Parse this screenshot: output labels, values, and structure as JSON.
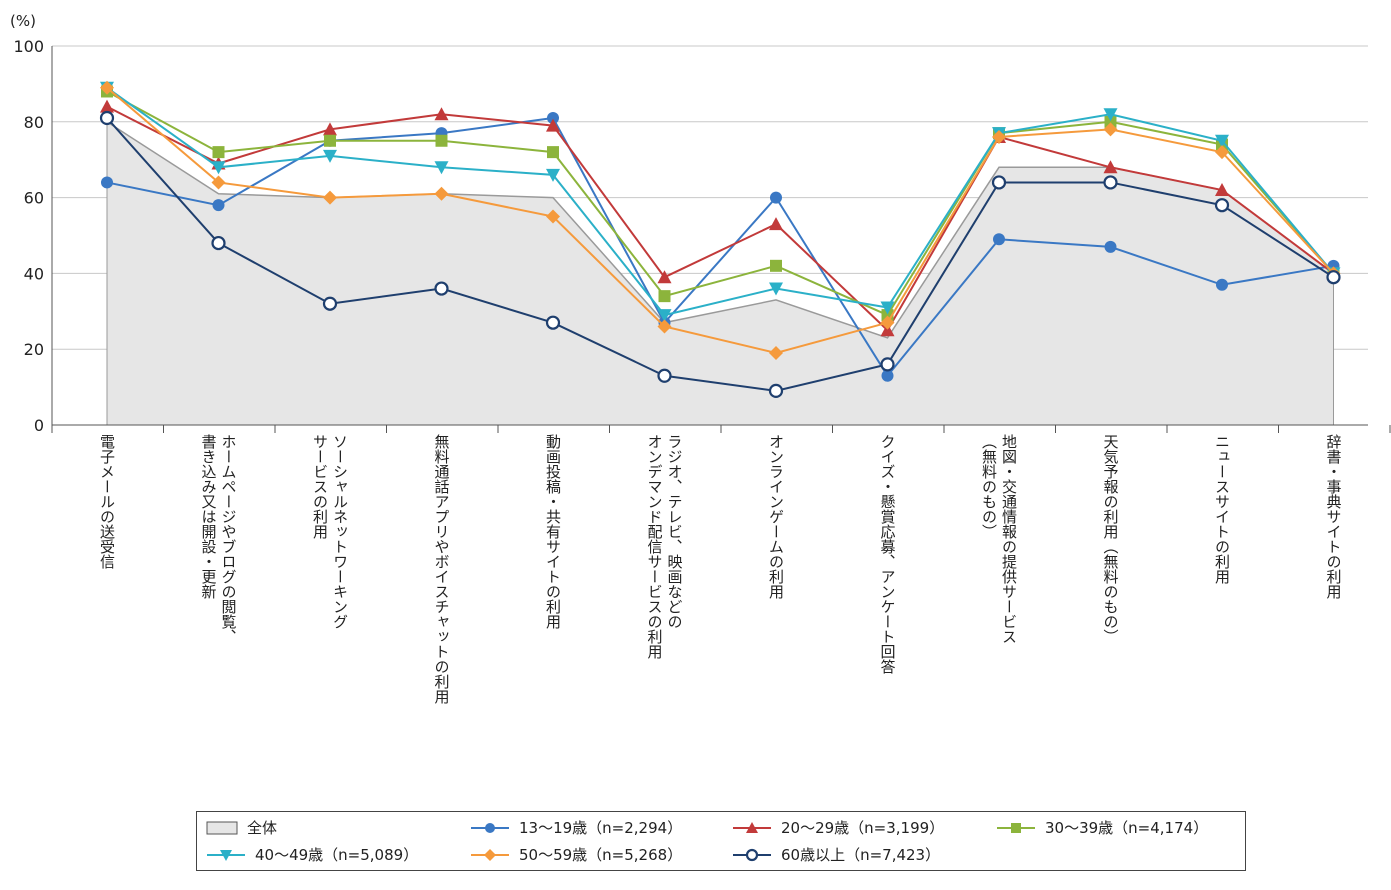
{
  "chart_data": {
    "type": "line",
    "ylabel": "(%)",
    "ylim": [
      0,
      100
    ],
    "yticks": [
      0,
      20,
      40,
      60,
      80,
      100
    ],
    "grid": true,
    "legend_position": "bottom",
    "categories": [
      "電子メールの送受信",
      "ホームページやブログの閲覧、\n書き込み又は開設・更新",
      "ソーシャルネットワーキング\nサービスの利用",
      "無料通話アプリやボイスチャットの利用",
      "動画投稿・共有サイトの利用",
      "ラジオ、テレビ、映画などの\nオンデマンド配信サービスの利用",
      "オンラインゲームの利用",
      "クイズ・懸賞応募、アンケート回答",
      "地図・交通情報の提供サービス\n（無料のもの）",
      "天気予報の利用（無料のもの）",
      "ニュースサイトの利用",
      "辞書・事典サイトの利用"
    ],
    "area": {
      "name": "全体",
      "color": "#e6e6e6",
      "values": [
        80,
        61,
        60,
        61,
        60,
        27,
        33,
        23,
        68,
        68,
        62,
        40
      ]
    },
    "series": [
      {
        "name": "13～19歳（n=2,294）",
        "color": "#3a78c4",
        "marker": "circle",
        "values": [
          64,
          58,
          75,
          77,
          81,
          27,
          60,
          13,
          49,
          47,
          37,
          42
        ]
      },
      {
        "name": "20～29歳（n=3,199）",
        "color": "#c23a3a",
        "marker": "triangle-up",
        "values": [
          84,
          69,
          78,
          82,
          79,
          39,
          53,
          25,
          76,
          68,
          62,
          40
        ]
      },
      {
        "name": "30～39歳（n=4,174）",
        "color": "#8cb43c",
        "marker": "square",
        "values": [
          88,
          72,
          75,
          75,
          72,
          34,
          42,
          29,
          77,
          80,
          74,
          40
        ]
      },
      {
        "name": "40～49歳（n=5,089）",
        "color": "#2bb0c8",
        "marker": "triangle-down",
        "values": [
          89,
          68,
          71,
          68,
          66,
          29,
          36,
          31,
          77,
          82,
          75,
          40
        ]
      },
      {
        "name": "50～59歳（n=5,268）",
        "color": "#f59a3c",
        "marker": "diamond",
        "values": [
          89,
          64,
          60,
          61,
          55,
          26,
          19,
          27,
          76,
          78,
          72,
          40
        ]
      },
      {
        "name": "60歳以上（n=7,423）",
        "color": "#1f3f6e",
        "marker": "open-circle",
        "values": [
          81,
          48,
          32,
          36,
          27,
          13,
          9,
          16,
          64,
          64,
          58,
          39
        ]
      }
    ]
  }
}
